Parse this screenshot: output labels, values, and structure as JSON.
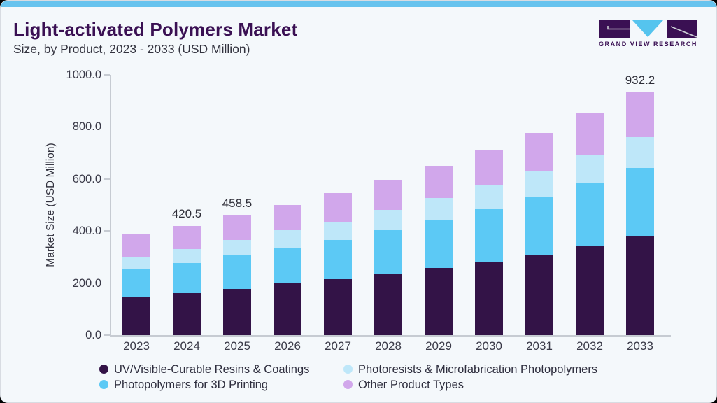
{
  "header": {
    "title": "Light-activated Polymers Market",
    "subtitle": "Size, by Product, 2023 - 2033 (USD Million)"
  },
  "logo": {
    "text": "GRAND VIEW RESEARCH",
    "purple": "#3A1053",
    "triangle_blue": "#55C4EE"
  },
  "accent_bar_color": "#67C3EE",
  "chart_data": {
    "type": "bar",
    "stacked": true,
    "title": "Light-activated Polymers Market Size, by Product, 2023 - 2033 (USD Million)",
    "ylabel": "Market Size (USD Million)",
    "ylim": [
      0,
      1000
    ],
    "ytick_labels": [
      "0.0",
      "200.0",
      "400.0",
      "600.0",
      "800.0",
      "1000.0"
    ],
    "grid": false,
    "legend_position": "bottom",
    "categories": [
      "2023",
      "2024",
      "2025",
      "2026",
      "2027",
      "2028",
      "2029",
      "2030",
      "2031",
      "2032",
      "2033"
    ],
    "series": [
      {
        "name": "UV/Visible-Curable Resins & Coatings",
        "color": "#331347",
        "values": [
          147.0,
          162.0,
          177.0,
          198.0,
          214.6,
          235.0,
          259.0,
          283.0,
          310.0,
          341.0,
          378.0
        ]
      },
      {
        "name": "Photopolymers for 3D Printing",
        "color": "#5CC9F5",
        "values": [
          105.0,
          114.0,
          129.0,
          136.0,
          150.0,
          167.0,
          181.0,
          200.0,
          222.0,
          242.0,
          265.0
        ]
      },
      {
        "name": "Photoresists & Microfabrication Photopolymers",
        "color": "#BEE7F9",
        "values": [
          48.0,
          55.0,
          60.0,
          69.0,
          71.0,
          80.0,
          88.0,
          96.0,
          101.0,
          110.0,
          117.0
        ]
      },
      {
        "name": "Other Product Types",
        "color": "#D1A7EB",
        "values": [
          85.8,
          89.5,
          92.5,
          97.0,
          110.0,
          115.0,
          123.0,
          132.0,
          145.0,
          159.0,
          172.2
        ]
      }
    ],
    "totals": [
      385.8,
      420.5,
      458.5,
      500.0,
      545.6,
      597.0,
      651.0,
      711.0,
      778.0,
      852.0,
      932.2
    ],
    "value_labels": {
      "2024": "420.5",
      "2025": "458.5",
      "2033": "932.2"
    },
    "legend_display_order": [
      "UV/Visible-Curable Resins & Coatings",
      "Photoresists & Microfabrication Photopolymers",
      "Photopolymers for 3D Printing",
      "Other Product Types"
    ]
  }
}
